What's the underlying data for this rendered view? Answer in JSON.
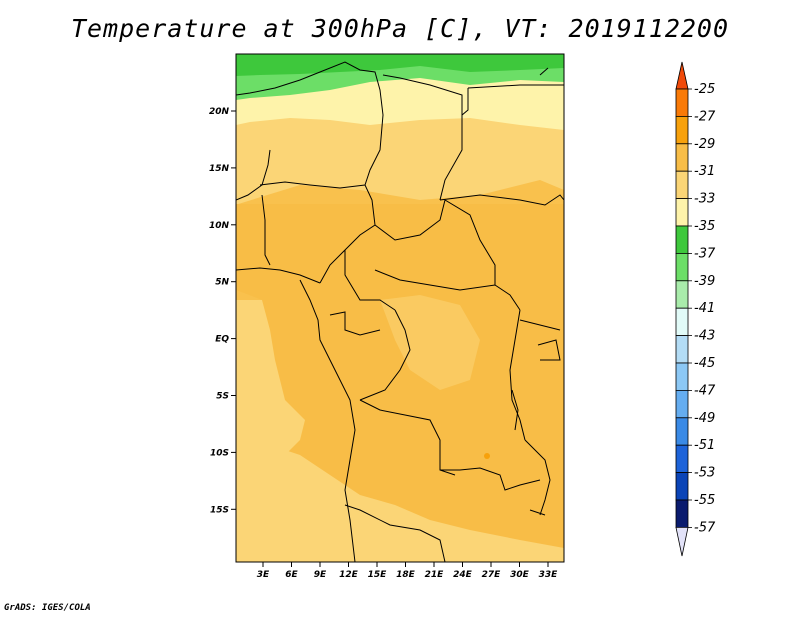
{
  "title": "Temperature at 300hPa [C], VT: 2019112200",
  "credit": "GrADS: IGES/COLA",
  "map": {
    "lat_labels": [
      "20N",
      "15N",
      "10N",
      "5N",
      "EQ",
      "5S",
      "10S",
      "15S"
    ],
    "lon_labels": [
      "3E",
      "6E",
      "9E",
      "12E",
      "15E",
      "18E",
      "21E",
      "24E",
      "27E",
      "30E",
      "33E"
    ]
  },
  "colorbar": {
    "labels": [
      "-25",
      "-27",
      "-29",
      "-31",
      "-33",
      "-35",
      "-37",
      "-39",
      "-41",
      "-43",
      "-45",
      "-47",
      "-49",
      "-51",
      "-53",
      "-55",
      "-57"
    ],
    "colors": [
      "#f04a0a",
      "#f97a07",
      "#f7a10c",
      "#f8bd47",
      "#fbd576",
      "#fef3aa",
      "#3ec83c",
      "#6cde67",
      "#a9ecab",
      "#e2fbf8",
      "#b3dcf5",
      "#8cc8f5",
      "#65adf0",
      "#3a8ae6",
      "#1d63d9",
      "#0a44b7",
      "#0a1b6e",
      "#e2e2f8"
    ]
  }
}
